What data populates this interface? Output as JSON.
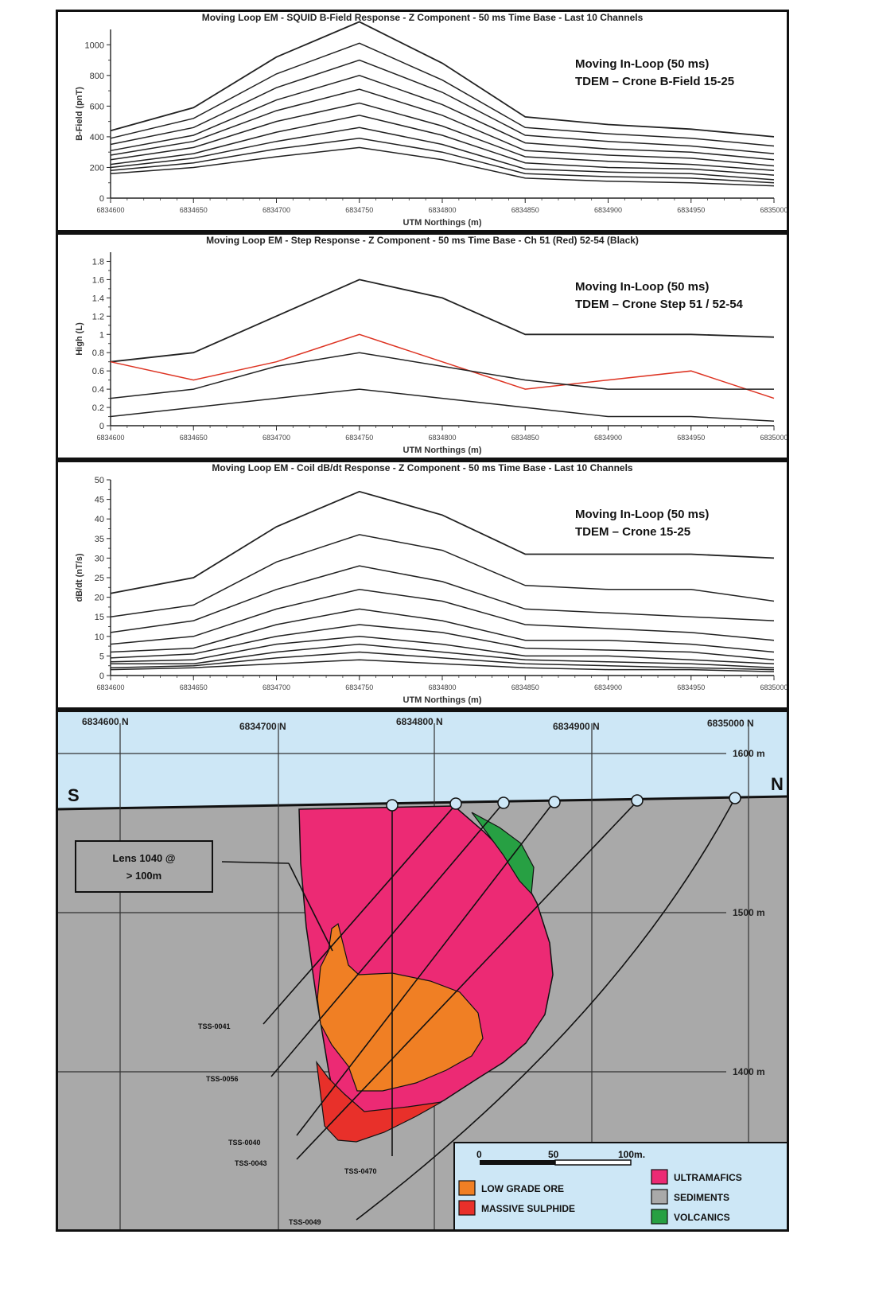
{
  "charts": [
    {
      "title": "Moving Loop EM - SQUID B-Field Response - Z Component - 50 ms Time Base - Last 10 Channels",
      "annotation_line1": "Moving In-Loop (50 ms)",
      "annotation_line2": "TDEM – Crone B-Field 15-25",
      "ylabel": "B-Field (pnT)",
      "xlabel": "UTM Northings (m)"
    },
    {
      "title": "Moving Loop EM - Step Response - Z Component - 50 ms Time Base - Ch 51 (Red) 52-54 (Black)",
      "annotation_line1": "Moving In-Loop (50 ms)",
      "annotation_line2": "TDEM – Crone Step 51 / 52-54",
      "ylabel": "High (L)",
      "xlabel": "UTM Northings (m)"
    },
    {
      "title": "Moving Loop EM - Coil dB/dt Response - Z Component - 50 ms Time Base - Last 10 Channels",
      "annotation_line1": "Moving In-Loop (50 ms)",
      "annotation_line2": "TDEM – Crone 15-25",
      "ylabel": "dB/dt (nT/s)",
      "xlabel": "UTM Northings (m)"
    }
  ],
  "chart_data": [
    {
      "type": "line",
      "x": [
        6834600,
        6834650,
        6834700,
        6834750,
        6834800,
        6834850,
        6834900,
        6834950,
        6835000
      ],
      "x_tick_labels": [
        "6834600",
        "6834650",
        "6834700",
        "6834750",
        "6834800",
        "6834850",
        "6834900",
        "6834950",
        "6835000"
      ],
      "ylim": [
        0,
        1100
      ],
      "y_ticks": [
        0,
        200,
        400,
        600,
        800,
        1000
      ],
      "series": [
        {
          "values": [
            440,
            590,
            920,
            1150,
            880,
            530,
            480,
            450,
            400
          ],
          "color": "#222222"
        },
        {
          "values": [
            390,
            520,
            810,
            1010,
            770,
            460,
            420,
            390,
            340
          ],
          "color": "#222222"
        },
        {
          "values": [
            350,
            460,
            720,
            900,
            690,
            410,
            370,
            340,
            290
          ],
          "color": "#222222"
        },
        {
          "values": [
            310,
            410,
            640,
            800,
            610,
            360,
            320,
            300,
            250
          ],
          "color": "#222222"
        },
        {
          "values": [
            280,
            370,
            570,
            710,
            540,
            310,
            280,
            260,
            210
          ],
          "color": "#222222"
        },
        {
          "values": [
            250,
            330,
            500,
            620,
            470,
            270,
            240,
            220,
            180
          ],
          "color": "#222222"
        },
        {
          "values": [
            220,
            290,
            430,
            540,
            410,
            230,
            200,
            190,
            150
          ],
          "color": "#222222"
        },
        {
          "values": [
            200,
            260,
            370,
            460,
            350,
            190,
            170,
            160,
            120
          ],
          "color": "#222222"
        },
        {
          "values": [
            180,
            230,
            320,
            390,
            300,
            160,
            140,
            130,
            100
          ],
          "color": "#222222"
        },
        {
          "values": [
            160,
            200,
            270,
            330,
            250,
            130,
            110,
            100,
            80
          ],
          "color": "#222222"
        }
      ]
    },
    {
      "type": "line",
      "x": [
        6834600,
        6834650,
        6834700,
        6834750,
        6834800,
        6834850,
        6834900,
        6834950,
        6835000
      ],
      "x_tick_labels": [
        "6834600",
        "6834650",
        "6834700",
        "6834750",
        "6834800",
        "6834850",
        "6834900",
        "6834950",
        "6835000"
      ],
      "ylim": [
        0,
        1.9
      ],
      "y_ticks": [
        0,
        0.2,
        0.4,
        0.6,
        0.8,
        1,
        1.2,
        1.4,
        1.6,
        1.8
      ],
      "series": [
        {
          "values": [
            0.7,
            0.8,
            1.2,
            1.6,
            1.4,
            1.0,
            1.0,
            1.0,
            0.97
          ],
          "color": "#222222"
        },
        {
          "values": [
            0.7,
            0.5,
            0.7,
            1.0,
            0.7,
            0.4,
            0.5,
            0.6,
            0.3
          ],
          "color": "#dd3322"
        },
        {
          "values": [
            0.3,
            0.4,
            0.65,
            0.8,
            0.65,
            0.5,
            0.4,
            0.4,
            0.4
          ],
          "color": "#222222"
        },
        {
          "values": [
            0.1,
            0.2,
            0.3,
            0.4,
            0.3,
            0.2,
            0.1,
            0.1,
            0.05
          ],
          "color": "#222222"
        }
      ]
    },
    {
      "type": "line",
      "x": [
        6834600,
        6834650,
        6834700,
        6834750,
        6834800,
        6834850,
        6834900,
        6834950,
        6835000
      ],
      "x_tick_labels": [
        "6834600",
        "6834650",
        "6834700",
        "6834750",
        "6834800",
        "6834850",
        "6834900",
        "6834950",
        "6835000"
      ],
      "ylim": [
        0,
        50
      ],
      "y_ticks": [
        0,
        5,
        10,
        15,
        20,
        25,
        30,
        35,
        40,
        45,
        50
      ],
      "series": [
        {
          "values": [
            21,
            25,
            38,
            47,
            41,
            31,
            31,
            31,
            30
          ],
          "color": "#222222"
        },
        {
          "values": [
            15,
            18,
            29,
            36,
            32,
            23,
            22,
            22,
            19
          ],
          "color": "#222222"
        },
        {
          "values": [
            11,
            14,
            22,
            28,
            24,
            17,
            16,
            15,
            14
          ],
          "color": "#222222"
        },
        {
          "values": [
            8,
            10,
            17,
            22,
            19,
            13,
            12,
            11,
            9
          ],
          "color": "#222222"
        },
        {
          "values": [
            6,
            7,
            13,
            17,
            14,
            9,
            9,
            8,
            6
          ],
          "color": "#222222"
        },
        {
          "values": [
            4.5,
            5.5,
            10,
            13,
            11,
            7,
            6.5,
            6,
            4
          ],
          "color": "#222222"
        },
        {
          "values": [
            3.5,
            4,
            8,
            10,
            8,
            5,
            5,
            4,
            3
          ],
          "color": "#222222"
        },
        {
          "values": [
            3,
            3,
            6,
            8,
            6,
            4,
            3.5,
            3,
            2
          ],
          "color": "#222222"
        },
        {
          "values": [
            2,
            2.5,
            4.5,
            6,
            4.5,
            3,
            2.5,
            2,
            1.5
          ],
          "color": "#222222"
        },
        {
          "values": [
            1.5,
            2,
            3,
            4,
            3,
            2,
            1.5,
            1.5,
            1
          ],
          "color": "#222222"
        }
      ]
    }
  ],
  "section": {
    "northings": [
      "6834600 N",
      "6834700 N",
      "6834800 N",
      "6834900 N",
      "6835000 N"
    ],
    "elevations": [
      "1600 m",
      "1500 m",
      "1400 m"
    ],
    "south_label": "S",
    "north_label": "N",
    "lens_label_line1": "Lens 1040 @",
    "lens_label_line2": "> 100m",
    "holes": [
      "TSS-0041",
      "TSS-0056",
      "TSS-0040",
      "TSS-0043",
      "TSS-0470",
      "TSS-0049"
    ],
    "scale_labels": [
      "0",
      "50",
      "100m."
    ],
    "legend": [
      {
        "label": "LOW GRADE ORE",
        "color": "#f07f24"
      },
      {
        "label": "MASSIVE SULPHIDE",
        "color": "#e8302a"
      },
      {
        "label": "ULTRAMAFICS",
        "color": "#ec2a74"
      },
      {
        "label": "SEDIMENTS",
        "color": "#a9a9a9"
      },
      {
        "label": "VOLCANICS",
        "color": "#27a043"
      }
    ],
    "colors": {
      "sky": "#cde7f6",
      "ground": "#a9a9a9",
      "ultramafic": "#ec2a74",
      "massive": "#e8302a",
      "lowgrade": "#f07f24",
      "volcanic": "#27a043"
    }
  }
}
